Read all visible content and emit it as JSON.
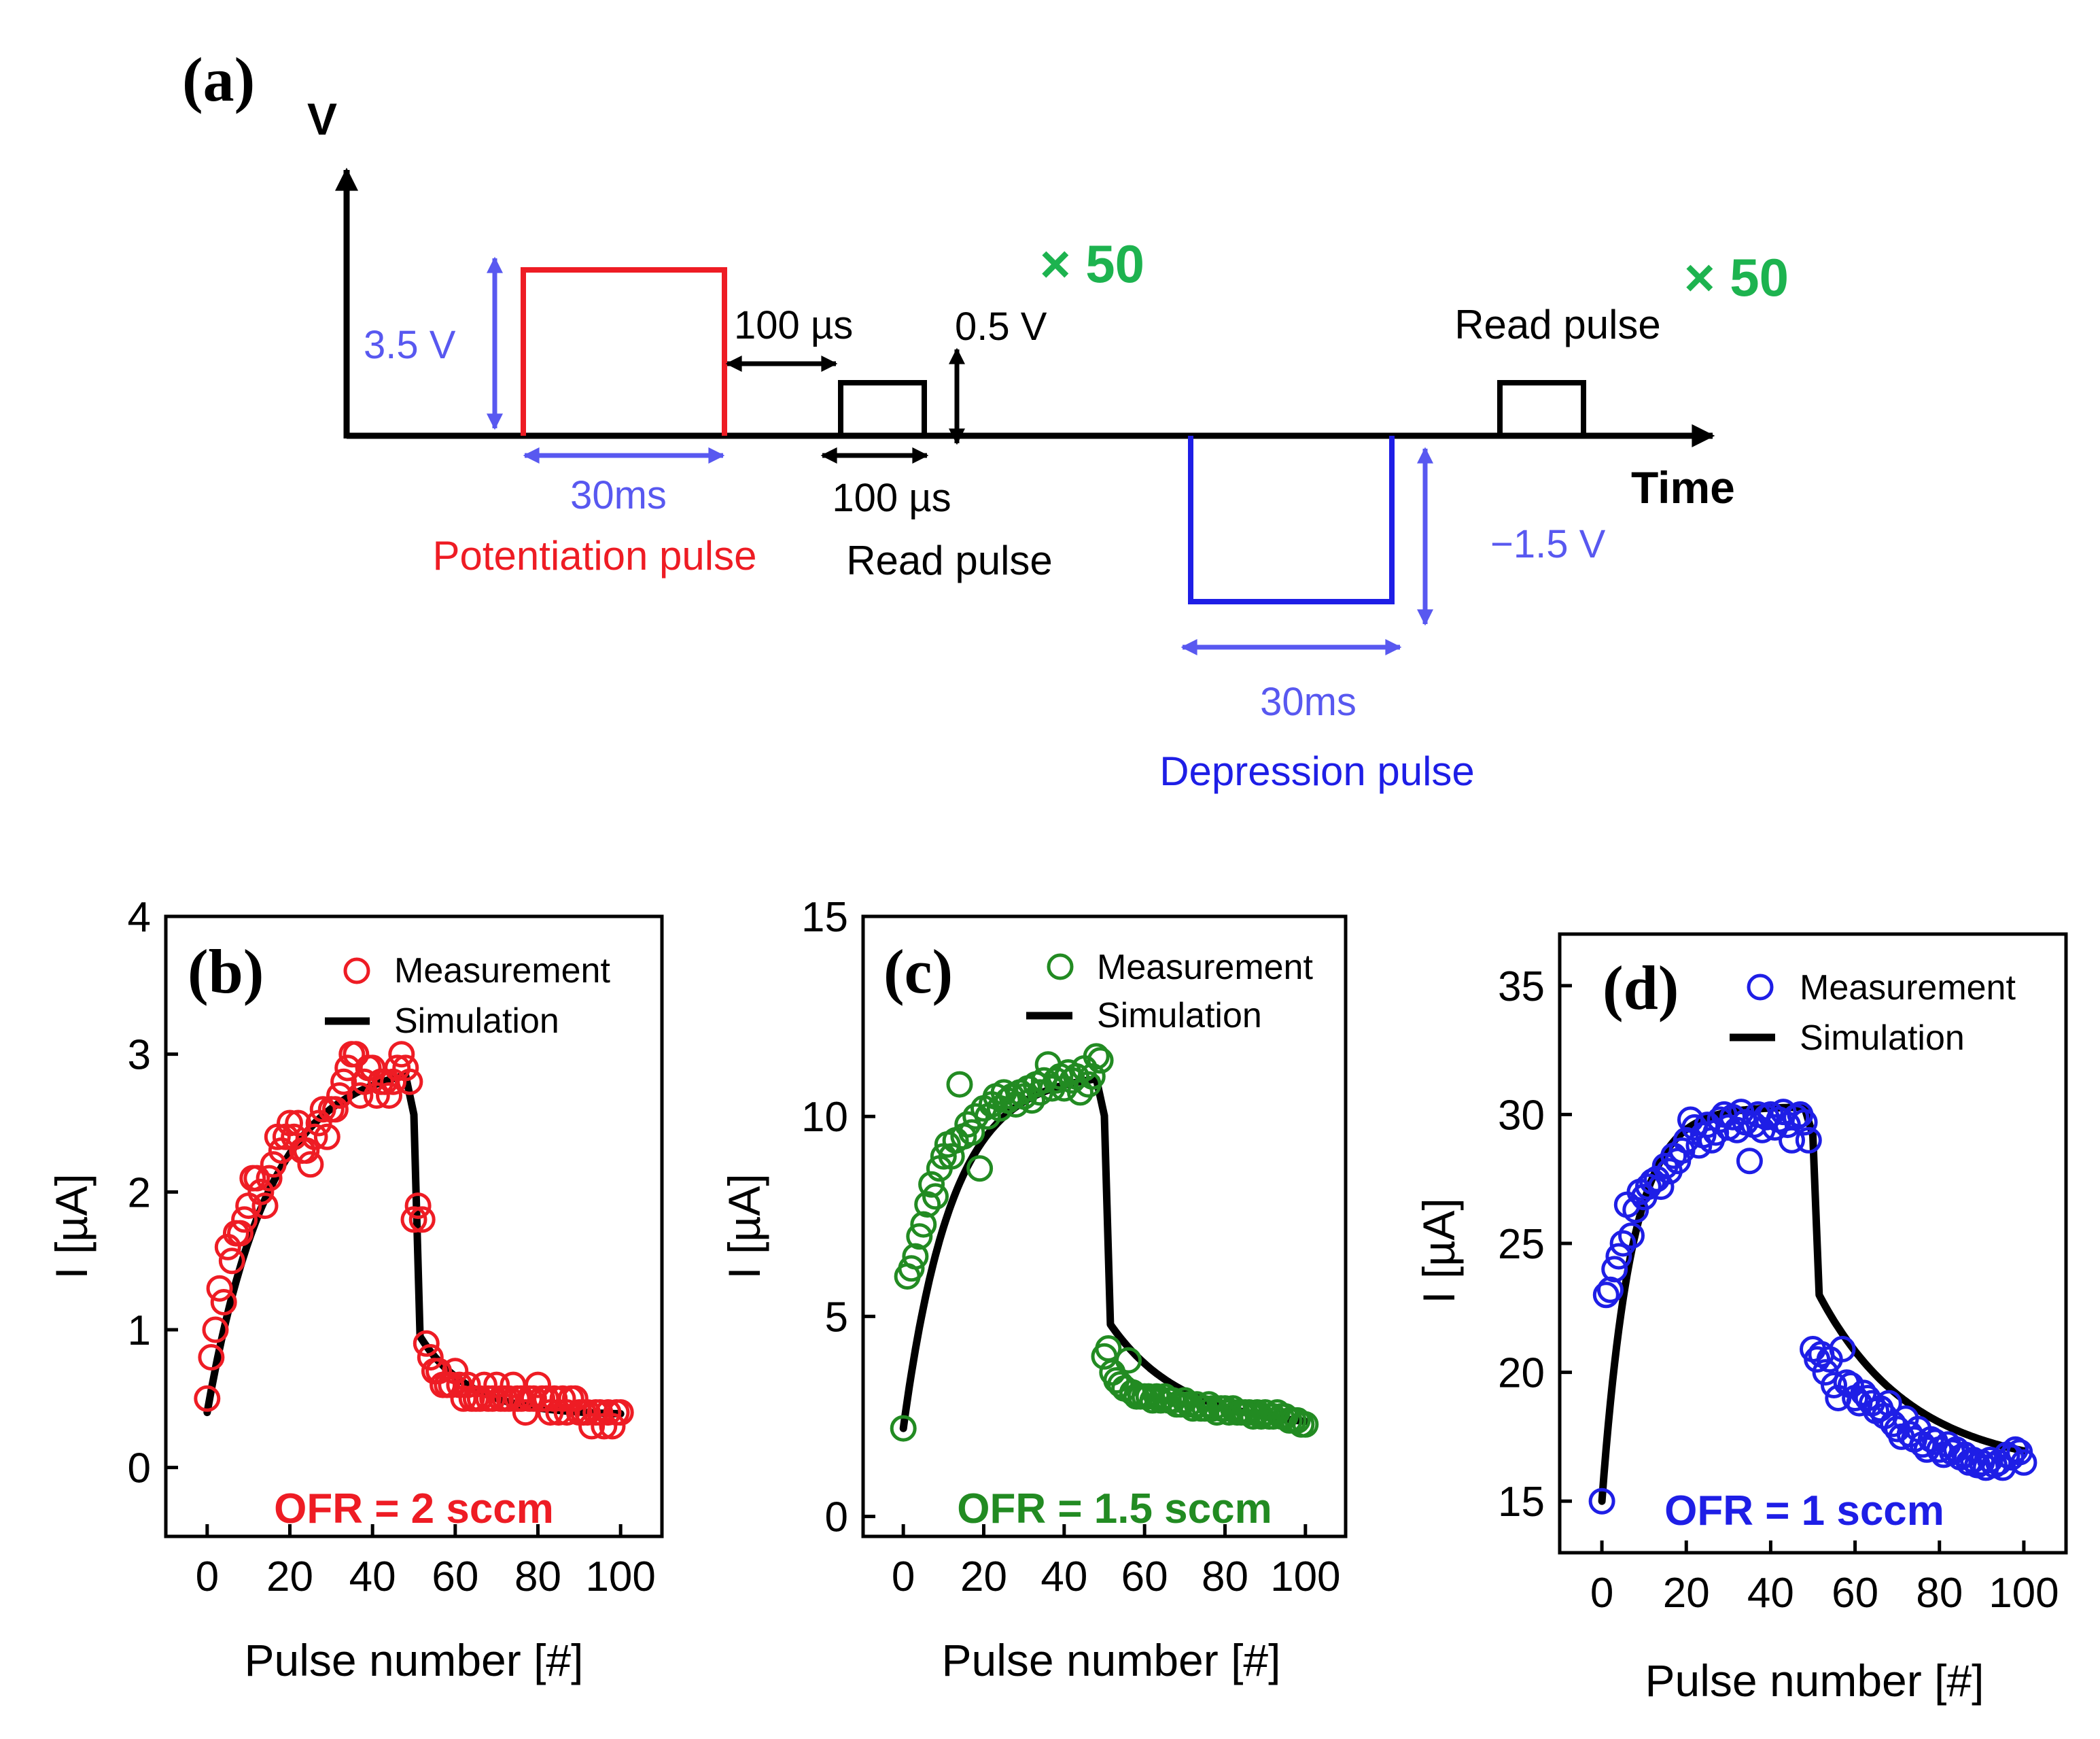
{
  "colors": {
    "red": "#ee1c24",
    "green": "#228b22",
    "blue": "#1e1ee6",
    "bright_green": "#1db34f",
    "light_blue": "#5858f0",
    "black": "#000000"
  },
  "schematic": {
    "panel_label": "(a)",
    "y_label": "V",
    "x_label": "Time",
    "potentiation_amp": "3.5 V",
    "potentiation_width": "30ms",
    "potentiation_label": "Potentiation pulse",
    "gap_label": "100 µs",
    "read_width_label": "100 µs",
    "read_amp": "0.5 V",
    "read_label_1": "Read pulse",
    "repeat_1": "× 50",
    "depression_amp": "−1.5 V",
    "depression_width": "30ms",
    "depression_label": "Depression pulse",
    "read_label_2": "Read pulse",
    "repeat_2": "× 50"
  },
  "chart_data": [
    {
      "panel": "(b)",
      "type": "scatter",
      "xlabel": "Pulse number [#]",
      "ylabel": "I [µA]",
      "xlim": [
        -10,
        110
      ],
      "ylim": [
        -0.5,
        4
      ],
      "xticks": [
        0,
        20,
        40,
        60,
        80,
        100
      ],
      "yticks": [
        0,
        1,
        2,
        3,
        4
      ],
      "legend": [
        "Measurement",
        "Simulation"
      ],
      "legend_position": "top-right",
      "annotation": "OFR  =  2  sccm",
      "color": "#ee1c24",
      "measurement": {
        "x": [
          0,
          1,
          2,
          3,
          4,
          5,
          6,
          7,
          8,
          9,
          10,
          11,
          12,
          13,
          14,
          15,
          16,
          17,
          18,
          19,
          20,
          21,
          22,
          23,
          24,
          25,
          26,
          27,
          28,
          29,
          30,
          31,
          32,
          33,
          34,
          35,
          36,
          37,
          38,
          39,
          40,
          41,
          42,
          43,
          44,
          45,
          46,
          47,
          48,
          49,
          50,
          51,
          52,
          53,
          54,
          55,
          56,
          57,
          58,
          59,
          60,
          61,
          62,
          63,
          64,
          65,
          66,
          67,
          68,
          69,
          70,
          71,
          72,
          73,
          74,
          75,
          76,
          77,
          78,
          79,
          80,
          81,
          82,
          83,
          84,
          85,
          86,
          87,
          88,
          89,
          90,
          91,
          92,
          93,
          94,
          95,
          96,
          97,
          98,
          99,
          100
        ],
        "y": [
          0.5,
          0.8,
          1.0,
          1.3,
          1.2,
          1.6,
          1.5,
          1.7,
          1.7,
          1.8,
          1.9,
          2.1,
          2.1,
          2.0,
          1.9,
          2.1,
          2.2,
          2.4,
          2.3,
          2.4,
          2.5,
          2.4,
          2.5,
          2.3,
          2.3,
          2.2,
          2.4,
          2.5,
          2.6,
          2.4,
          2.6,
          2.6,
          2.7,
          2.8,
          2.9,
          3.0,
          3.0,
          2.7,
          2.8,
          2.9,
          2.9,
          2.7,
          2.8,
          2.8,
          2.7,
          2.8,
          2.9,
          3.0,
          2.9,
          2.8,
          1.8,
          1.9,
          1.8,
          0.9,
          0.8,
          0.7,
          0.7,
          0.6,
          0.6,
          0.6,
          0.7,
          0.6,
          0.5,
          0.6,
          0.5,
          0.5,
          0.5,
          0.6,
          0.5,
          0.5,
          0.6,
          0.5,
          0.5,
          0.5,
          0.6,
          0.5,
          0.5,
          0.4,
          0.5,
          0.5,
          0.6,
          0.5,
          0.5,
          0.4,
          0.5,
          0.4,
          0.5,
          0.4,
          0.5,
          0.5,
          0.4,
          0.4,
          0.4,
          0.3,
          0.4,
          0.4,
          0.3,
          0.4,
          0.3,
          0.4,
          0.4
        ]
      },
      "simulation": {
        "y0": 0.4,
        "yp": 2.95,
        "tau_p": 15,
        "yd1": 0.95,
        "yd_inf": 0.38,
        "tau_d": 12
      }
    },
    {
      "panel": "(c)",
      "type": "scatter",
      "xlabel": "Pulse number [#]",
      "ylabel": "I [µA]",
      "xlim": [
        -10,
        110
      ],
      "ylim": [
        -0.5,
        15
      ],
      "xticks": [
        0,
        20,
        40,
        60,
        80,
        100
      ],
      "yticks": [
        0,
        5,
        10,
        15
      ],
      "legend": [
        "Measurement",
        "Simulation"
      ],
      "legend_position": "top-right",
      "annotation": "OFR  =  1.5  sccm",
      "color": "#228b22",
      "measurement": {
        "x": [
          0,
          1,
          2,
          3,
          4,
          5,
          6,
          7,
          8,
          9,
          10,
          11,
          12,
          13,
          14,
          15,
          16,
          17,
          18,
          19,
          20,
          21,
          22,
          23,
          24,
          25,
          26,
          27,
          28,
          29,
          30,
          31,
          32,
          33,
          34,
          35,
          36,
          37,
          38,
          39,
          40,
          41,
          42,
          43,
          44,
          45,
          46,
          47,
          48,
          49,
          50,
          51,
          52,
          53,
          54,
          55,
          56,
          57,
          58,
          59,
          60,
          61,
          62,
          63,
          64,
          65,
          66,
          67,
          68,
          69,
          70,
          71,
          72,
          73,
          74,
          75,
          76,
          77,
          78,
          79,
          80,
          81,
          82,
          83,
          84,
          85,
          86,
          87,
          88,
          89,
          90,
          91,
          92,
          93,
          94,
          95,
          96,
          97,
          98,
          99,
          100
        ],
        "y": [
          2.2,
          6.0,
          6.2,
          6.5,
          7.0,
          7.3,
          7.8,
          8.3,
          8.0,
          8.7,
          9.0,
          9.3,
          9.0,
          9.4,
          10.8,
          9.5,
          9.8,
          9.6,
          10.0,
          8.7,
          10.2,
          10.0,
          10.3,
          10.5,
          10.2,
          10.6,
          10.4,
          10.5,
          10.3,
          10.6,
          10.5,
          10.7,
          10.4,
          10.8,
          10.6,
          10.9,
          11.3,
          10.7,
          10.9,
          11.0,
          10.7,
          11.1,
          10.9,
          11.0,
          10.6,
          11.2,
          10.8,
          11.0,
          11.5,
          11.4,
          4.0,
          4.2,
          3.6,
          3.4,
          3.3,
          3.2,
          3.9,
          3.1,
          3.0,
          3.0,
          3.0,
          3.0,
          2.9,
          3.0,
          2.9,
          3.0,
          2.9,
          2.9,
          2.8,
          2.8,
          2.9,
          2.8,
          2.7,
          2.8,
          2.7,
          2.7,
          2.8,
          2.7,
          2.6,
          2.7,
          2.7,
          2.6,
          2.7,
          2.6,
          2.6,
          2.6,
          2.6,
          2.5,
          2.6,
          2.5,
          2.6,
          2.5,
          2.5,
          2.6,
          2.5,
          2.5,
          2.4,
          2.4,
          2.4,
          2.3,
          2.3
        ]
      },
      "simulation": {
        "y0": 2.2,
        "yp": 11.1,
        "tau_p": 12,
        "yd1": 4.8,
        "yd_inf": 2.2,
        "tau_d": 18
      }
    },
    {
      "panel": "(d)",
      "type": "scatter",
      "xlabel": "Pulse number [#]",
      "ylabel": "I [µA]",
      "xlim": [
        -10,
        110
      ],
      "ylim": [
        13,
        37
      ],
      "xticks": [
        0,
        20,
        40,
        60,
        80,
        100
      ],
      "yticks": [
        15,
        20,
        25,
        30,
        35
      ],
      "legend": [
        "Measurement",
        "Simulation"
      ],
      "legend_position": "top-right",
      "annotation": "OFR  =  1  sccm",
      "color": "#1e1ee6",
      "measurement": {
        "x": [
          0,
          1,
          2,
          3,
          4,
          5,
          6,
          7,
          8,
          9,
          10,
          11,
          12,
          13,
          14,
          15,
          16,
          17,
          18,
          19,
          20,
          21,
          22,
          23,
          24,
          25,
          26,
          27,
          28,
          29,
          30,
          31,
          32,
          33,
          34,
          35,
          36,
          37,
          38,
          39,
          40,
          41,
          42,
          43,
          44,
          45,
          46,
          47,
          48,
          49,
          50,
          51,
          52,
          53,
          54,
          55,
          56,
          57,
          58,
          59,
          60,
          61,
          62,
          63,
          64,
          65,
          66,
          67,
          68,
          69,
          70,
          71,
          72,
          73,
          74,
          75,
          76,
          77,
          78,
          79,
          80,
          81,
          82,
          83,
          84,
          85,
          86,
          87,
          88,
          89,
          90,
          91,
          92,
          93,
          94,
          95,
          96,
          97,
          98,
          99,
          100
        ],
        "y": [
          15.0,
          23.0,
          23.2,
          24.0,
          24.5,
          25.0,
          26.5,
          25.3,
          26.3,
          27.0,
          26.8,
          27.2,
          27.4,
          27.5,
          27.2,
          28.0,
          27.8,
          28.4,
          28.2,
          28.6,
          29.0,
          29.8,
          29.5,
          28.8,
          29.2,
          29.6,
          29.0,
          29.3,
          29.8,
          30.0,
          29.5,
          29.9,
          29.4,
          30.1,
          29.7,
          28.2,
          29.6,
          30.0,
          29.4,
          29.9,
          30.0,
          29.5,
          29.8,
          30.1,
          29.6,
          29.0,
          29.9,
          30.0,
          29.7,
          29.0,
          20.9,
          20.5,
          20.7,
          20.0,
          20.5,
          19.5,
          19.0,
          20.9,
          19.6,
          19.5,
          19.0,
          18.8,
          19.2,
          19.0,
          18.8,
          18.5,
          18.6,
          18.3,
          18.8,
          18.0,
          17.8,
          17.5,
          18.2,
          17.6,
          17.4,
          17.8,
          17.2,
          17.0,
          17.4,
          17.3,
          17.0,
          16.8,
          17.2,
          16.9,
          17.0,
          16.7,
          16.8,
          16.5,
          16.6,
          16.4,
          16.5,
          16.3,
          16.6,
          16.4,
          16.5,
          16.3,
          16.8,
          16.7,
          17.0,
          16.9,
          16.5
        ]
      },
      "simulation": {
        "y0": 15.0,
        "yp": 30.3,
        "tau_p": 7,
        "yd1": 23.0,
        "yd_inf": 16.2,
        "tau_d": 22
      }
    }
  ]
}
